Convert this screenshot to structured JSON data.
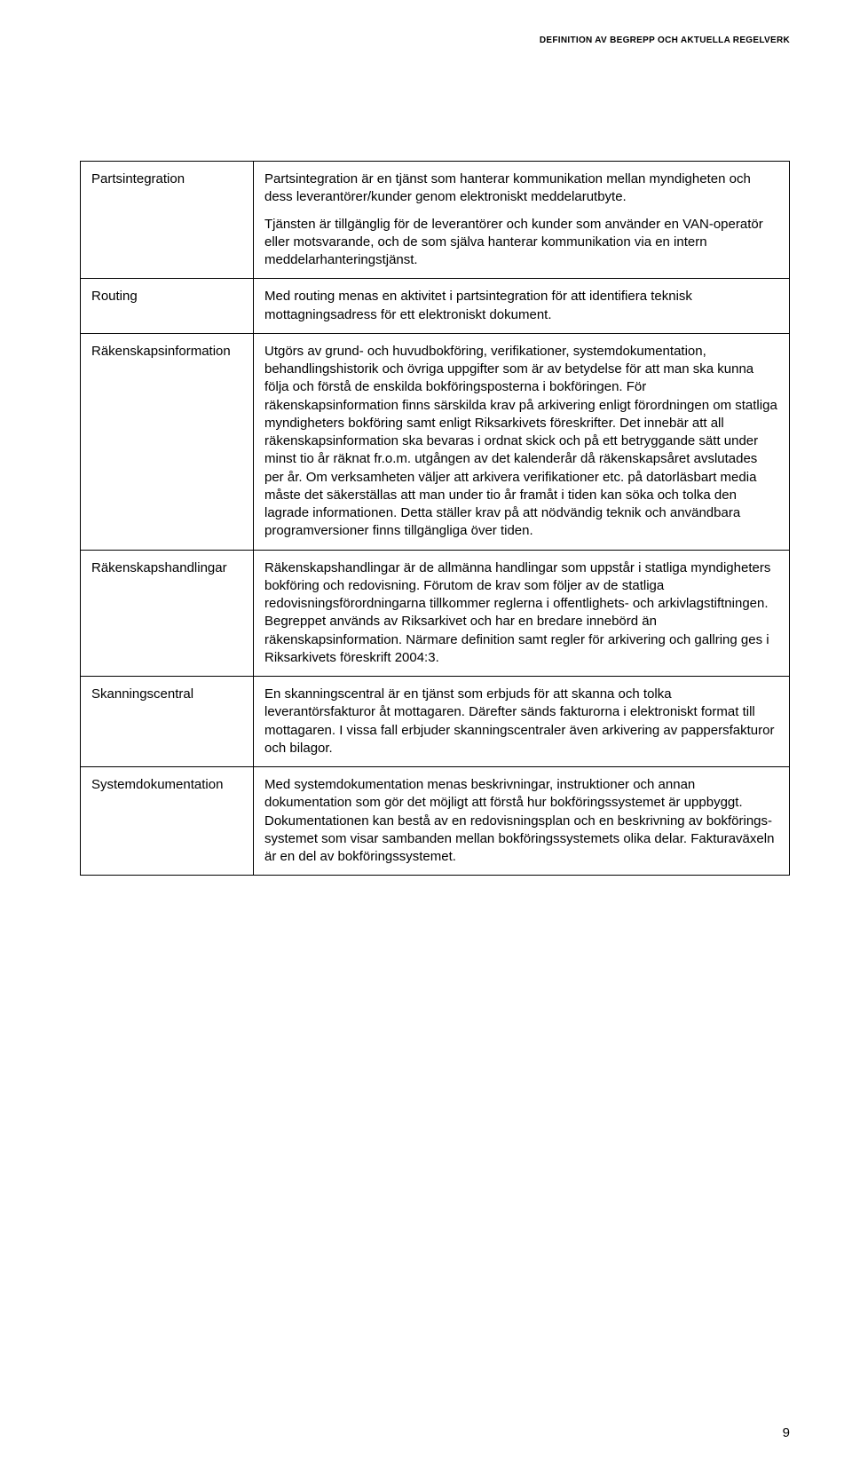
{
  "header": {
    "running_title": "DEFINITION AV BEGREPP OCH AKTUELLA REGELVERK"
  },
  "definitions": [
    {
      "term": "Partsintegration",
      "paragraphs": [
        "Partsintegration är en tjänst som hanterar kommunikation mellan myndigheten och dess leverantörer/kunder genom elektroniskt meddelarutbyte.",
        "Tjänsten är tillgänglig för de leverantörer och kunder som använder en VAN-operatör eller motsvarande, och de som själva hanterar kommunikation via en intern meddelarhanteringstjänst."
      ]
    },
    {
      "term": "Routing",
      "paragraphs": [
        "Med routing menas en aktivitet i partsintegration för att identifiera teknisk mottagningsadress för ett elektroniskt dokument."
      ]
    },
    {
      "term": "Räkenskapsinformation",
      "paragraphs": [
        "Utgörs av grund- och huvudbokföring, verifikationer, systemdokumentation, behandlingshistorik och övriga uppgifter som är av betydelse för att man ska kunna följa och förstå de enskilda bokföringsposterna i bokföringen. För räkenskapsinformation finns särskilda krav på arkivering enligt förordningen om statliga myndigheters bokföring samt enligt Riksarkivets föreskrifter. Det innebär att all räkenskapsinformation ska bevaras i ordnat skick och på ett betryggande sätt under minst tio år räknat fr.o.m. utgången av det kalenderår då räkenskapsåret avslutades per år. Om verksamheten väljer att arkivera verifikationer etc. på datorläsbart media måste det säkerställas att man under tio år framåt i tiden kan söka och tolka den lagrade informationen. Detta ställer krav på att nödvändig teknik och användbara programversioner finns tillgängliga över tiden."
      ]
    },
    {
      "term": "Räkenskapshandlingar",
      "paragraphs": [
        "Räkenskapshandlingar är de allmänna handlingar som uppstår i statliga myndigheters bokföring och redovisning. Förutom de krav som följer av de statliga redovisningsförordningarna tillkommer reglerna i offentlighets- och arkivlagstiftningen. Begreppet används av Riksarkivet och har en bredare innebörd än räkenskapsinformation. Närmare definition samt regler för arkivering och gallring ges i Riksarkivets föreskrift 2004:3."
      ]
    },
    {
      "term": "Skanningscentral",
      "paragraphs": [
        "En skanningscentral är en tjänst som erbjuds för att skanna och tolka leverantörsfakturor åt mottagaren. Därefter sänds fakturorna i elektroniskt format till mottagaren. I vissa fall erbjuder skanningscentraler även arkivering av pappersfakturor och bilagor."
      ]
    },
    {
      "term": "Systemdokumentation",
      "paragraphs": [
        "Med systemdokumentation menas beskrivningar, instruktioner och annan dokumentation som gör det möjligt att förstå hur bokföringssystemet är uppbyggt. Dokumentationen kan bestå av en redovisningsplan och en beskrivning av bokförings-systemet som visar sambanden mellan bokföringssystemets olika delar. Fakturaväxeln är en del av bokföringssystemet."
      ]
    }
  ],
  "page_number": "9"
}
